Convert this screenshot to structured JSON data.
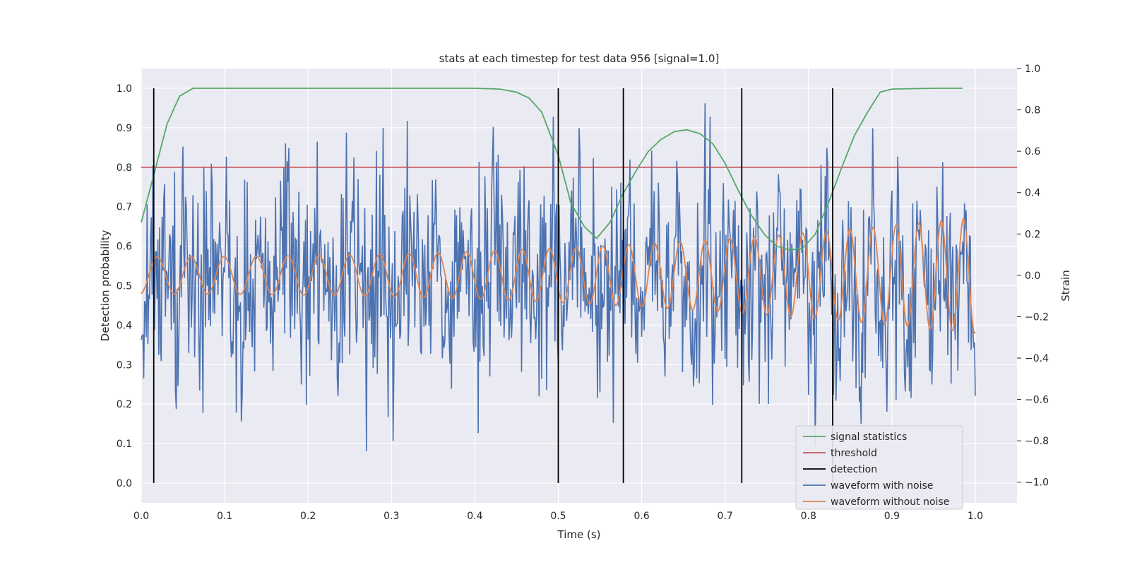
{
  "chart_data": {
    "type": "line",
    "title": "stats at each timestep for test data 956 [signal=1.0]",
    "xlabel": "Time (s)",
    "ylabel": "Detection probability",
    "ylabel_right": "Strain",
    "xlim": [
      0.0,
      1.05
    ],
    "ylim": [
      -0.05,
      1.05
    ],
    "ylim_right": [
      -1.1,
      1.0
    ],
    "x_ticks": [
      "0.0",
      "0.1",
      "0.2",
      "0.3",
      "0.4",
      "0.5",
      "0.6",
      "0.7",
      "0.8",
      "0.9",
      "1.0"
    ],
    "y_ticks": [
      "0.0",
      "0.1",
      "0.2",
      "0.3",
      "0.4",
      "0.5",
      "0.6",
      "0.7",
      "0.8",
      "0.9",
      "1.0"
    ],
    "y_right_ticks": [
      "−1.0",
      "−0.8",
      "−0.6",
      "−0.4",
      "−0.2",
      "0.0",
      "0.2",
      "0.4",
      "0.6",
      "0.8",
      "1.0"
    ],
    "grid": true,
    "legend_position": "lower-right",
    "colors": {
      "signal": "#55a868",
      "threshold": "#c44e52",
      "detection": "#000000",
      "noisy": "#4c72b0",
      "clean": "#dd8452",
      "plot_bg": "#eaeaf2",
      "grid": "#ffffff"
    },
    "series": [
      {
        "name": "signal statistics",
        "axis": "left",
        "x": [
          0.0,
          0.015,
          0.031,
          0.046,
          0.062,
          0.077,
          0.1,
          0.2,
          0.3,
          0.4,
          0.43,
          0.45,
          0.465,
          0.48,
          0.5,
          0.515,
          0.531,
          0.546,
          0.562,
          0.577,
          0.593,
          0.608,
          0.623,
          0.639,
          0.654,
          0.67,
          0.685,
          0.7,
          0.716,
          0.731,
          0.747,
          0.762,
          0.778,
          0.793,
          0.808,
          0.824,
          0.84,
          0.855,
          0.871,
          0.886,
          0.9,
          0.95,
          0.985
        ],
        "y": [
          0.66,
          0.78,
          0.91,
          0.98,
          1.0,
          1.0,
          1.0,
          1.0,
          1.0,
          1.0,
          0.998,
          0.99,
          0.975,
          0.94,
          0.83,
          0.71,
          0.65,
          0.62,
          0.66,
          0.73,
          0.79,
          0.84,
          0.87,
          0.89,
          0.895,
          0.885,
          0.86,
          0.81,
          0.74,
          0.68,
          0.63,
          0.6,
          0.59,
          0.595,
          0.63,
          0.71,
          0.8,
          0.88,
          0.94,
          0.99,
          0.998,
          1.0,
          1.0
        ]
      },
      {
        "name": "threshold",
        "axis": "left",
        "value": 0.8
      },
      {
        "name": "detection",
        "axis": "left",
        "x": [
          0.015,
          0.5,
          0.578,
          0.72,
          0.829
        ],
        "y_range": [
          0.0,
          1.0
        ]
      },
      {
        "name": "waveform with noise",
        "axis": "right",
        "x_range": [
          0.0,
          1.0
        ],
        "n_points": 1000,
        "amplitude_range": [
          -0.85,
          0.95
        ]
      },
      {
        "name": "waveform without noise",
        "axis": "right",
        "x_range": [
          0.0,
          1.0
        ],
        "description": "chirp oscillation",
        "start_amplitude": 0.09,
        "end_amplitude": 0.28,
        "num_cycles": 31
      }
    ]
  },
  "legend": {
    "items": [
      {
        "label": "signal statistics",
        "color": "#55a868"
      },
      {
        "label": "threshold",
        "color": "#c44e52"
      },
      {
        "label": "detection",
        "color": "#000000"
      },
      {
        "label": "waveform with noise",
        "color": "#4c72b0"
      },
      {
        "label": "waveform without noise",
        "color": "#dd8452"
      }
    ]
  }
}
